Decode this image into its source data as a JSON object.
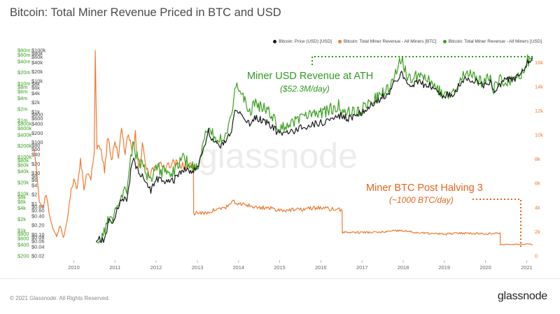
{
  "title": "Bitcoin: Total Miner Revenue Priced in BTC and USD",
  "legend": [
    {
      "label": "Bitcoin: Price (USD) [USD]",
      "color": "#1a1a1a"
    },
    {
      "label": "Bitcoin: Total Miner Revenue - All Miners [BTC]",
      "color": "#f07a2f"
    },
    {
      "label": "Bitcoin: Total Miner Revenue - All Miners [USD]",
      "color": "#3aa020"
    }
  ],
  "watermark": "glassnode",
  "footer": {
    "copyright": "© 2021 Glassnode. All Rights Reserved.",
    "brand": "glassnode"
  },
  "annotations": {
    "green_line1": "Miner USD Revenue at ATH",
    "green_line2": "($52.3M/day)",
    "orange_line1": "Miner BTC Post Halving 3",
    "orange_line2": "(~1000 BTC/day)"
  },
  "colors": {
    "price": "#1a1a1a",
    "btc_revenue": "#f07a2f",
    "usd_revenue": "#3aa020"
  },
  "chart_data": {
    "type": "line",
    "title": "Bitcoin: Total Miner Revenue Priced in BTC and USD",
    "x_ticks": [
      "2010",
      "2011",
      "2012",
      "2013",
      "2014",
      "2015",
      "2016",
      "2017",
      "2018",
      "2019",
      "2020",
      "2021"
    ],
    "y_axes": {
      "usd_revenue": {
        "scale": "log",
        "range": [
          200,
          80000000
        ],
        "ticks": [
          "$80m",
          "$60m",
          "$40m",
          "$20m",
          "$10m",
          "$8m",
          "$6m",
          "$4m",
          "$2m",
          "$1m",
          "$800k",
          "$600k",
          "$400k",
          "$200k",
          "$100k",
          "$80k",
          "$60k",
          "$40k",
          "$20k",
          "$10k",
          "$8k",
          "$6k",
          "$4k",
          "$2k",
          "$1k",
          "$800",
          "$600",
          "$400",
          "$200"
        ]
      },
      "price": {
        "scale": "log",
        "range": [
          0.02,
          100000
        ],
        "ticks": [
          "$100k",
          "$80k",
          "$60k",
          "$40k",
          "$20k",
          "$10k",
          "$8k",
          "$6k",
          "$4k",
          "$2k",
          "$1k",
          "$800",
          "$600",
          "$400",
          "$200",
          "$100",
          "$80",
          "$60",
          "$40",
          "$20",
          "$10",
          "$8",
          "$6",
          "$4",
          "$2",
          "$1",
          "$0.80",
          "$0.60",
          "$0.40",
          "$0.20",
          "$0.10",
          "$0.08",
          "$0.06",
          "$0.04",
          "$0.02"
        ]
      },
      "btc_revenue": {
        "scale": "linear",
        "range": [
          0,
          17000
        ],
        "ticks": [
          "16k",
          "14k",
          "12k",
          "10k",
          "8k",
          "6k",
          "4k",
          "2k",
          "0"
        ]
      }
    },
    "series": [
      {
        "name": "Bitcoin: Price (USD) [USD]",
        "axis": "price",
        "points": [
          [
            "2010-07-17",
            0.05
          ],
          [
            "2010-08-15",
            0.07
          ],
          [
            "2010-10-01",
            0.06
          ],
          [
            "2010-11-08",
            0.3
          ],
          [
            "2010-12-15",
            0.23
          ],
          [
            "2011-02-09",
            1.0
          ],
          [
            "2011-04-15",
            1.5
          ],
          [
            "2011-06-08",
            29
          ],
          [
            "2011-07-15",
            14
          ],
          [
            "2011-09-01",
            8
          ],
          [
            "2011-11-15",
            2.5
          ],
          [
            "2012-01-08",
            7
          ],
          [
            "2012-03-01",
            5
          ],
          [
            "2012-06-01",
            5.5
          ],
          [
            "2012-08-17",
            13
          ],
          [
            "2012-10-15",
            12
          ],
          [
            "2013-01-01",
            13.5
          ],
          [
            "2013-04-09",
            230
          ],
          [
            "2013-05-15",
            110
          ],
          [
            "2013-07-08",
            70
          ],
          [
            "2013-09-15",
            130
          ],
          [
            "2013-11-01",
            210
          ],
          [
            "2013-11-30",
            1150
          ],
          [
            "2014-02-01",
            800
          ],
          [
            "2014-04-10",
            380
          ],
          [
            "2014-06-01",
            650
          ],
          [
            "2014-09-01",
            480
          ],
          [
            "2015-01-14",
            170
          ],
          [
            "2015-05-01",
            240
          ],
          [
            "2015-11-05",
            400
          ],
          [
            "2016-01-01",
            430
          ],
          [
            "2016-06-16",
            760
          ],
          [
            "2016-09-01",
            600
          ],
          [
            "2017-01-01",
            1000
          ],
          [
            "2017-06-01",
            2500
          ],
          [
            "2017-09-01",
            4500
          ],
          [
            "2017-12-17",
            19500
          ],
          [
            "2018-02-06",
            6900
          ],
          [
            "2018-05-01",
            9000
          ],
          [
            "2018-09-01",
            7000
          ],
          [
            "2018-12-15",
            3200
          ],
          [
            "2019-04-01",
            4100
          ],
          [
            "2019-06-26",
            12800
          ],
          [
            "2019-09-15",
            10200
          ],
          [
            "2019-12-15",
            7000
          ],
          [
            "2020-02-13",
            10300
          ],
          [
            "2020-03-13",
            5000
          ],
          [
            "2020-06-01",
            9500
          ],
          [
            "2020-09-01",
            11500
          ],
          [
            "2020-12-01",
            19000
          ],
          [
            "2021-01-08",
            40000
          ],
          [
            "2021-02-01",
            33000
          ],
          [
            "2021-02-21",
            57000
          ]
        ]
      },
      {
        "name": "Bitcoin: Total Miner Revenue - All Miners [USD]",
        "axis": "usd_revenue",
        "points": [
          [
            "2010-07-17",
            400
          ],
          [
            "2010-09-01",
            600
          ],
          [
            "2010-11-08",
            2000
          ],
          [
            "2010-12-15",
            1800
          ],
          [
            "2011-02-09",
            7500
          ],
          [
            "2011-04-15",
            13000
          ],
          [
            "2011-06-08",
            220000
          ],
          [
            "2011-07-15",
            100000
          ],
          [
            "2011-09-01",
            60000
          ],
          [
            "2011-11-15",
            20000
          ],
          [
            "2012-01-08",
            50000
          ],
          [
            "2012-03-01",
            40000
          ],
          [
            "2012-06-01",
            40000
          ],
          [
            "2012-08-17",
            100000
          ],
          [
            "2012-11-28",
            50000
          ],
          [
            "2013-01-01",
            45000
          ],
          [
            "2013-04-09",
            800000
          ],
          [
            "2013-05-15",
            400000
          ],
          [
            "2013-07-08",
            250000
          ],
          [
            "2013-09-15",
            500000
          ],
          [
            "2013-11-01",
            1500000
          ],
          [
            "2013-11-30",
            9000000
          ],
          [
            "2014-02-01",
            4500000
          ],
          [
            "2014-04-10",
            1700000
          ],
          [
            "2014-06-01",
            2800000
          ],
          [
            "2014-09-01",
            2000000
          ],
          [
            "2015-01-14",
            600000
          ],
          [
            "2015-05-01",
            850000
          ],
          [
            "2015-11-05",
            1500000
          ],
          [
            "2016-01-01",
            1500000
          ],
          [
            "2016-06-16",
            2600000
          ],
          [
            "2016-07-15",
            1500000
          ],
          [
            "2016-12-01",
            1700000
          ],
          [
            "2017-06-01",
            4500000
          ],
          [
            "2017-09-01",
            7500000
          ],
          [
            "2017-12-17",
            53000000
          ],
          [
            "2018-02-06",
            14000000
          ],
          [
            "2018-05-01",
            15000000
          ],
          [
            "2018-09-01",
            11000000
          ],
          [
            "2018-12-15",
            5000000
          ],
          [
            "2019-04-01",
            6000000
          ],
          [
            "2019-06-26",
            20000000
          ],
          [
            "2019-09-15",
            15000000
          ],
          [
            "2019-12-15",
            10000000
          ],
          [
            "2020-02-13",
            15000000
          ],
          [
            "2020-03-13",
            7000000
          ],
          [
            "2020-05-11",
            12000000
          ],
          [
            "2020-06-01",
            10000000
          ],
          [
            "2020-09-01",
            12000000
          ],
          [
            "2020-12-01",
            20000000
          ],
          [
            "2021-01-08",
            45000000
          ],
          [
            "2021-02-01",
            40000000
          ],
          [
            "2021-02-21",
            52300000
          ]
        ]
      },
      {
        "name": "Bitcoin: Total Miner Revenue - All Miners [BTC]",
        "axis": "btc_revenue",
        "points": [
          [
            "2009-01-10",
            9000
          ],
          [
            "2009-02-01",
            7800
          ],
          [
            "2009-03-01",
            4500
          ],
          [
            "2009-04-01",
            4000
          ],
          [
            "2009-05-01",
            5200
          ],
          [
            "2009-06-01",
            3200
          ],
          [
            "2009-07-01",
            2300
          ],
          [
            "2009-08-01",
            1600
          ],
          [
            "2009-09-01",
            2500
          ],
          [
            "2009-10-01",
            1500
          ],
          [
            "2009-11-01",
            2800
          ],
          [
            "2009-12-01",
            5000
          ],
          [
            "2010-01-01",
            6500
          ],
          [
            "2010-02-01",
            5500
          ],
          [
            "2010-03-01",
            8000
          ],
          [
            "2010-04-01",
            5500
          ],
          [
            "2010-05-01",
            7000
          ],
          [
            "2010-06-01",
            6500
          ],
          [
            "2010-07-01",
            8800
          ],
          [
            "2010-07-10",
            16800
          ],
          [
            "2010-07-25",
            9000
          ],
          [
            "2010-09-01",
            8500
          ],
          [
            "2010-10-01",
            7000
          ],
          [
            "2010-11-01",
            10000
          ],
          [
            "2010-12-01",
            8000
          ],
          [
            "2011-01-01",
            9500
          ],
          [
            "2011-02-01",
            8000
          ],
          [
            "2011-03-01",
            11000
          ],
          [
            "2011-04-01",
            8500
          ],
          [
            "2011-05-01",
            10000
          ],
          [
            "2011-06-01",
            8500
          ],
          [
            "2011-07-01",
            10000
          ],
          [
            "2011-08-01",
            7000
          ],
          [
            "2011-09-01",
            9000
          ],
          [
            "2011-10-01",
            7500
          ],
          [
            "2011-11-01",
            6500
          ],
          [
            "2011-12-01",
            7200
          ],
          [
            "2012-01-01",
            7600
          ],
          [
            "2012-03-01",
            7400
          ],
          [
            "2012-06-01",
            7700
          ],
          [
            "2012-09-01",
            7500
          ],
          [
            "2012-11-27",
            7400
          ],
          [
            "2012-11-29",
            3500
          ],
          [
            "2013-01-01",
            3600
          ],
          [
            "2013-03-01",
            3500
          ],
          [
            "2013-06-01",
            3800
          ],
          [
            "2013-09-01",
            4000
          ],
          [
            "2013-12-01",
            4500
          ],
          [
            "2014-01-01",
            4200
          ],
          [
            "2014-03-01",
            4300
          ],
          [
            "2014-06-01",
            4000
          ],
          [
            "2014-09-01",
            4000
          ],
          [
            "2015-01-01",
            3800
          ],
          [
            "2015-06-01",
            3800
          ],
          [
            "2015-12-01",
            4000
          ],
          [
            "2016-03-01",
            3900
          ],
          [
            "2016-07-08",
            3800
          ],
          [
            "2016-07-10",
            1950
          ],
          [
            "2016-12-01",
            1950
          ],
          [
            "2017-06-01",
            1950
          ],
          [
            "2017-12-01",
            2100
          ],
          [
            "2018-06-01",
            1900
          ],
          [
            "2019-01-01",
            1800
          ],
          [
            "2019-06-01",
            1900
          ],
          [
            "2019-12-01",
            1850
          ],
          [
            "2020-05-10",
            1850
          ],
          [
            "2020-05-12",
            950
          ],
          [
            "2020-09-01",
            950
          ],
          [
            "2021-01-01",
            1000
          ],
          [
            "2021-02-21",
            950
          ]
        ]
      }
    ]
  }
}
